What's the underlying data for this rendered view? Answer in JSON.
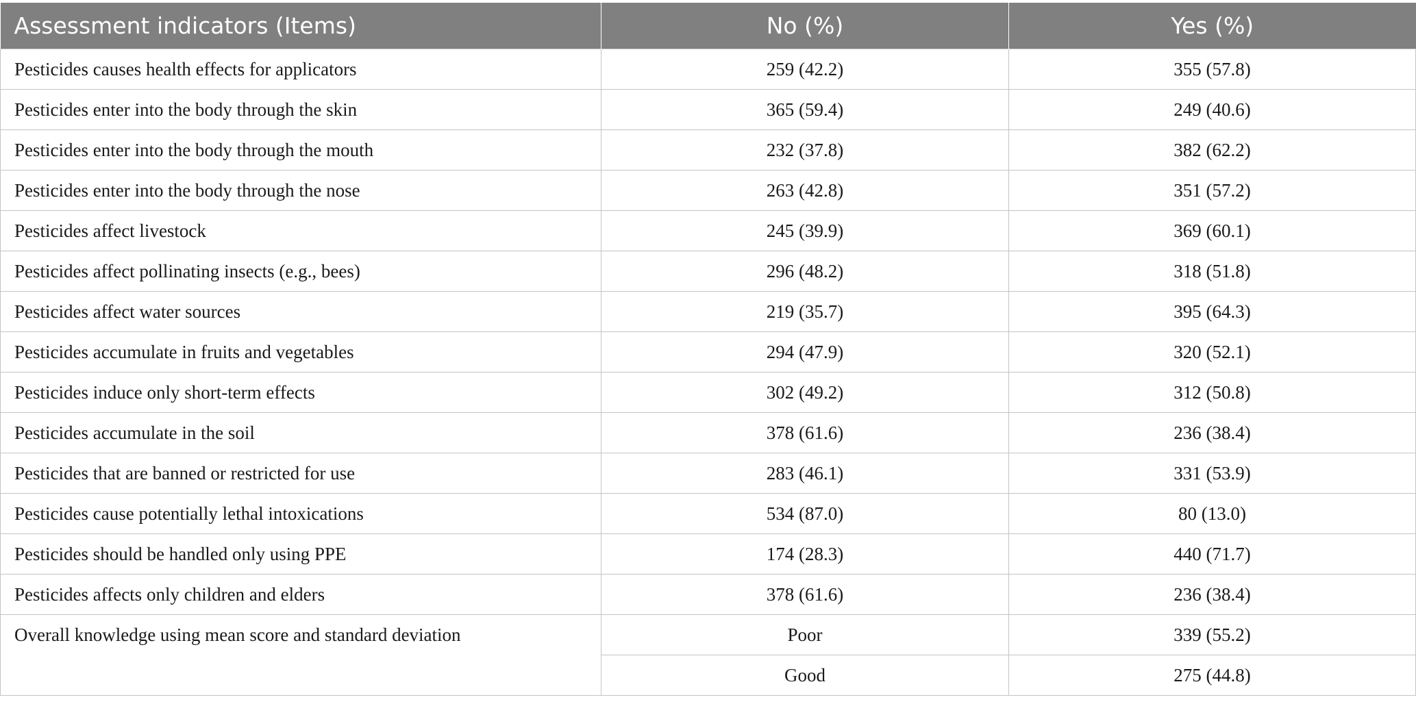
{
  "table": {
    "headers": [
      "Assessment indicators (Items)",
      "No (%)",
      "Yes (%)"
    ],
    "rows": [
      {
        "item": "Pesticides causes health effects for applicators",
        "no": "259 (42.2)",
        "yes": "355 (57.8)"
      },
      {
        "item": "Pesticides enter into the body through the skin",
        "no": "365 (59.4)",
        "yes": "249 (40.6)"
      },
      {
        "item": "Pesticides enter into the body through the mouth",
        "no": "232 (37.8)",
        "yes": "382 (62.2)"
      },
      {
        "item": "Pesticides enter into the body through the nose",
        "no": "263 (42.8)",
        "yes": "351 (57.2)"
      },
      {
        "item": "Pesticides affect livestock",
        "no": "245 (39.9)",
        "yes": "369 (60.1)"
      },
      {
        "item": "Pesticides affect pollinating insects (e.g., bees)",
        "no": "296 (48.2)",
        "yes": "318 (51.8)"
      },
      {
        "item": "Pesticides affect water sources",
        "no": "219 (35.7)",
        "yes": "395 (64.3)"
      },
      {
        "item": "Pesticides accumulate in fruits and vegetables",
        "no": "294 (47.9)",
        "yes": "320 (52.1)"
      },
      {
        "item": "Pesticides induce only short-term effects",
        "no": "302 (49.2)",
        "yes": "312 (50.8)"
      },
      {
        "item": "Pesticides accumulate in the soil",
        "no": "378 (61.6)",
        "yes": "236 (38.4)"
      },
      {
        "item": "Pesticides that are banned or restricted for use",
        "no": "283 (46.1)",
        "yes": "331 (53.9)"
      },
      {
        "item": "Pesticides cause potentially lethal intoxications",
        "no": "534 (87.0)",
        "yes": "80 (13.0)"
      },
      {
        "item": "Pesticides should be handled only using PPE",
        "no": "174 (28.3)",
        "yes": "440 (71.7)"
      },
      {
        "item": "Pesticides affects only children and elders",
        "no": "378 (61.6)",
        "yes": "236 (38.4)"
      }
    ],
    "overall": {
      "label": "Overall knowledge using mean score and standard deviation",
      "levels": [
        {
          "level": "Poor",
          "value": "339 (55.2)"
        },
        {
          "level": "Good",
          "value": "275 (44.8)"
        }
      ]
    }
  }
}
